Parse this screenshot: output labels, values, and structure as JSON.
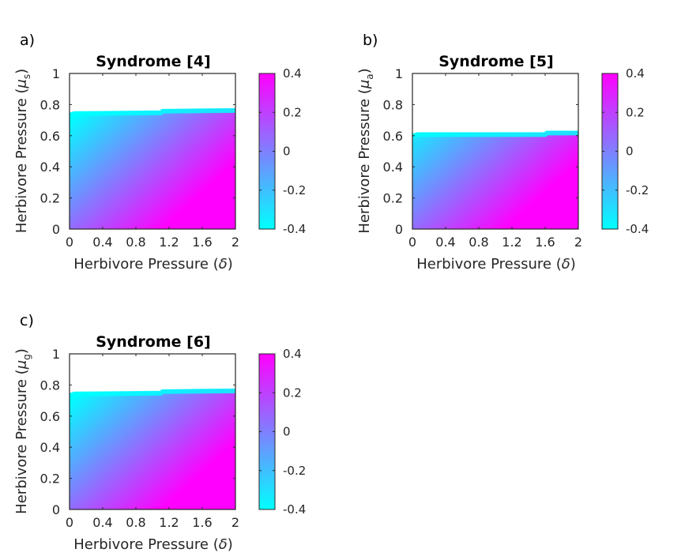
{
  "colors": {
    "low": "#00ffff",
    "high": "#ff00ff",
    "axis": "#262626"
  },
  "chart_data": [
    {
      "type": "heatmap",
      "panel_label": "a)",
      "title": "Syndrome [4]",
      "xlabel_text": "Herbivore Pressure (",
      "xlabel_symbol": "δ",
      "xlabel_end": ")",
      "ylabel_text": "Herbivore Pressure (",
      "ylabel_symbol": "μ",
      "ylabel_subscript": "s",
      "ylabel_end": ")",
      "xlim": [
        0,
        2.0
      ],
      "ylim": [
        0,
        1
      ],
      "x_ticks": [
        0,
        0.4,
        0.8,
        1.2,
        1.6,
        2
      ],
      "x_tick_labels": [
        "0",
        "0.4",
        "0.8",
        "1.2",
        "1.6",
        "2"
      ],
      "y_ticks": [
        0,
        0.2,
        0.4,
        0.6,
        0.8,
        1
      ],
      "y_tick_labels": [
        "0",
        "0.2",
        "0.4",
        "0.6",
        "0.8",
        "1"
      ],
      "boundary": [
        [
          0,
          0.745
        ],
        [
          0.06,
          0.755
        ],
        [
          1.1,
          0.76
        ],
        [
          1.12,
          0.77
        ],
        [
          2.0,
          0.775
        ]
      ],
      "value_range": [
        -0.4,
        0.4
      ],
      "colorbar_ticks": [
        -0.4,
        -0.2,
        0,
        0.2,
        0.4
      ],
      "colorbar_tick_labels": [
        "-0.4",
        "-0.2",
        "0",
        "0.2",
        "0.4"
      ],
      "colormap": "cool"
    },
    {
      "type": "heatmap",
      "panel_label": "b)",
      "title": "Syndrome [5]",
      "xlabel_text": "Herbivore Pressure (",
      "xlabel_symbol": "δ",
      "xlabel_end": ")",
      "ylabel_text": "Herbivore Pressure (",
      "ylabel_symbol": "μ",
      "ylabel_subscript": "a",
      "ylabel_end": ")",
      "xlim": [
        0,
        2.0
      ],
      "ylim": [
        0,
        1
      ],
      "x_ticks": [
        0,
        0.4,
        0.8,
        1.2,
        1.6,
        2
      ],
      "x_tick_labels": [
        "0",
        "0.4",
        "0.8",
        "1.2",
        "1.6",
        "2"
      ],
      "y_ticks": [
        0,
        0.2,
        0.4,
        0.6,
        0.8,
        1
      ],
      "y_tick_labels": [
        "0",
        "0.2",
        "0.4",
        "0.6",
        "0.8",
        "1"
      ],
      "boundary": [
        [
          0,
          0.61
        ],
        [
          0.06,
          0.62
        ],
        [
          1.6,
          0.62
        ],
        [
          1.62,
          0.63
        ],
        [
          2.0,
          0.63
        ]
      ],
      "value_range": [
        -0.4,
        0.4
      ],
      "colorbar_ticks": [
        -0.4,
        -0.2,
        0,
        0.2,
        0.4
      ],
      "colorbar_tick_labels": [
        "-0.4",
        "-0.2",
        "0",
        "0.2",
        "0.4"
      ],
      "colormap": "cool"
    },
    {
      "type": "heatmap",
      "panel_label": "c)",
      "title": "Syndrome [6]",
      "xlabel_text": "Herbivore Pressure (",
      "xlabel_symbol": "δ",
      "xlabel_end": ")",
      "ylabel_text": "Herbivore Pressure (",
      "ylabel_symbol": "μ",
      "ylabel_subscript": "g",
      "ylabel_end": ")",
      "xlim": [
        0,
        2.0
      ],
      "ylim": [
        0,
        1
      ],
      "x_ticks": [
        0,
        0.4,
        0.8,
        1.2,
        1.6,
        2
      ],
      "x_tick_labels": [
        "0",
        "0.4",
        "0.8",
        "1.2",
        "1.6",
        "2"
      ],
      "y_ticks": [
        0,
        0.2,
        0.4,
        0.6,
        0.8,
        1
      ],
      "y_tick_labels": [
        "0",
        "0.2",
        "0.4",
        "0.6",
        "0.8",
        "1"
      ],
      "boundary": [
        [
          0,
          0.745
        ],
        [
          0.06,
          0.755
        ],
        [
          1.1,
          0.76
        ],
        [
          1.12,
          0.77
        ],
        [
          2.0,
          0.775
        ]
      ],
      "value_range": [
        -0.4,
        0.4
      ],
      "colorbar_ticks": [
        -0.4,
        -0.2,
        0,
        0.2,
        0.4
      ],
      "colorbar_tick_labels": [
        "-0.4",
        "-0.2",
        "0",
        "0.2",
        "0.4"
      ],
      "colormap": "cool"
    }
  ]
}
